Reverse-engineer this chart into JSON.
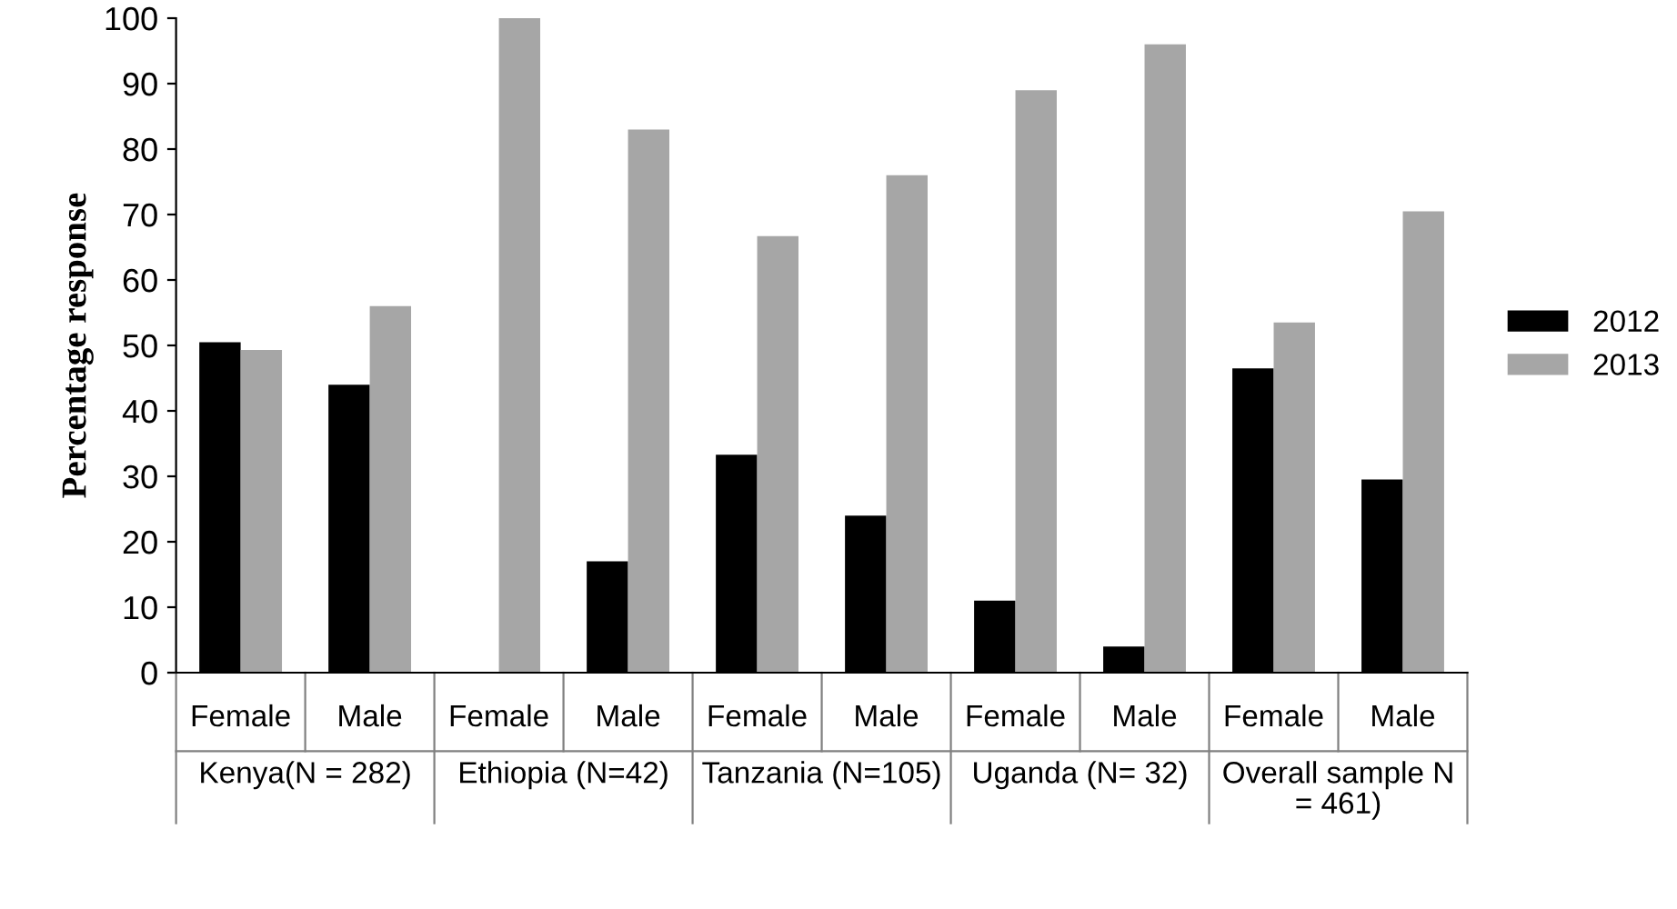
{
  "chart_data": {
    "type": "bar",
    "ylabel": "Percentage response",
    "categories": [
      "Female",
      "Male",
      "Female",
      "Male",
      "Female",
      "Male",
      "Female",
      "Male",
      "Female",
      "Male"
    ],
    "series": [
      {
        "name": "2012",
        "color": "#000000",
        "values": [
          50.5,
          44,
          0,
          17,
          33.3,
          24,
          11,
          4,
          46.5,
          29.5
        ]
      },
      {
        "name": "2013",
        "color": "#a6a6a6",
        "values": [
          49.3,
          56,
          100,
          83,
          66.7,
          76,
          89,
          96,
          53.5,
          70.5
        ]
      }
    ],
    "annotations": [
      "Kenya(N = 282)",
      "Ethiopia (N=42)",
      "Tanzania (N=105)",
      "Uganda (N= 32)",
      "Overall sample N\n= 461)"
    ],
    "ylim": [
      0,
      100
    ],
    "yticks": [
      0,
      10,
      20,
      30,
      40,
      50,
      60,
      70,
      80,
      90,
      100
    ],
    "grid": false,
    "legend": "right"
  }
}
